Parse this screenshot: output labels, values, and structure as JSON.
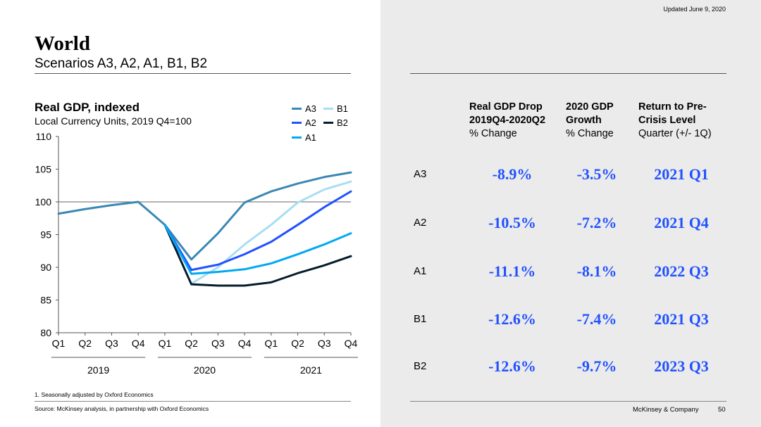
{
  "header": {
    "title": "World",
    "subtitle": "Scenarios A3, A2, A1, B1, B2",
    "updated": "Updated June 9, 2020"
  },
  "chart_data": {
    "type": "line",
    "title": "Real GDP, indexed",
    "subtitle": "Local Currency Units, 2019 Q4=100",
    "x": [
      "Q1",
      "Q2",
      "Q3",
      "Q4",
      "Q1",
      "Q2",
      "Q3",
      "Q4",
      "Q1",
      "Q2",
      "Q3",
      "Q4"
    ],
    "year_groups": [
      {
        "label": "2019",
        "start": 0,
        "end": 3
      },
      {
        "label": "2020",
        "start": 4,
        "end": 7
      },
      {
        "label": "2021",
        "start": 8,
        "end": 11
      }
    ],
    "ylim": [
      80,
      110
    ],
    "yticks": [
      80,
      85,
      90,
      95,
      100,
      105,
      110
    ],
    "reference_line": 100,
    "legend_placement": "top-right",
    "series": [
      {
        "name": "A3",
        "color": "#3a88b3",
        "values": [
          98.2,
          98.9,
          99.5,
          100,
          96.5,
          91.2,
          95.2,
          99.9,
          101.6,
          102.8,
          103.8,
          104.5
        ]
      },
      {
        "name": "B1",
        "color": "#a8def3",
        "values": [
          null,
          null,
          null,
          null,
          null,
          87.5,
          90.0,
          93.5,
          96.5,
          99.9,
          101.9,
          103.1
        ]
      },
      {
        "name": "A2",
        "color": "#2251ff",
        "values": [
          null,
          null,
          null,
          null,
          96.5,
          89.6,
          90.4,
          92.0,
          93.9,
          96.5,
          99.2,
          101.6
        ]
      },
      {
        "name": "B2",
        "color": "#051c2c",
        "values": [
          null,
          null,
          null,
          null,
          96.5,
          87.4,
          87.2,
          87.2,
          87.7,
          89.1,
          90.3,
          91.7
        ]
      },
      {
        "name": "A1",
        "color": "#00a9f4",
        "values": [
          null,
          null,
          null,
          null,
          96.5,
          89.0,
          89.3,
          89.7,
          90.6,
          92.0,
          93.5,
          95.2
        ]
      }
    ]
  },
  "table": {
    "headers": [
      {
        "bold1": "Real GDP Drop",
        "bold2": "2019Q4-2020Q2",
        "normal": "% Change"
      },
      {
        "bold1": "2020 GDP",
        "bold2": "Growth",
        "normal": "% Change"
      },
      {
        "bold1": "Return to Pre-",
        "bold2": "Crisis Level",
        "normal": "Quarter (+/- 1Q)"
      }
    ],
    "rows": [
      {
        "label": "A3",
        "drop": "-8.9%",
        "growth": "-3.5%",
        "return": "2021 Q1"
      },
      {
        "label": "A2",
        "drop": "-10.5%",
        "growth": "-7.2%",
        "return": "2021 Q4"
      },
      {
        "label": "A1",
        "drop": "-11.1%",
        "growth": "-8.1%",
        "return": "2022 Q3"
      },
      {
        "label": "B1",
        "drop": "-12.6%",
        "growth": "-7.4%",
        "return": "2021 Q3"
      },
      {
        "label": "B2",
        "drop": "-12.6%",
        "growth": "-9.7%",
        "return": "2023 Q3"
      }
    ]
  },
  "footer": {
    "footnote": "1.   Seasonally adjusted by Oxford Economics",
    "source": "Source: McKinsey analysis, in partnership with Oxford Economics",
    "company": "McKinsey & Company",
    "page": "50"
  }
}
